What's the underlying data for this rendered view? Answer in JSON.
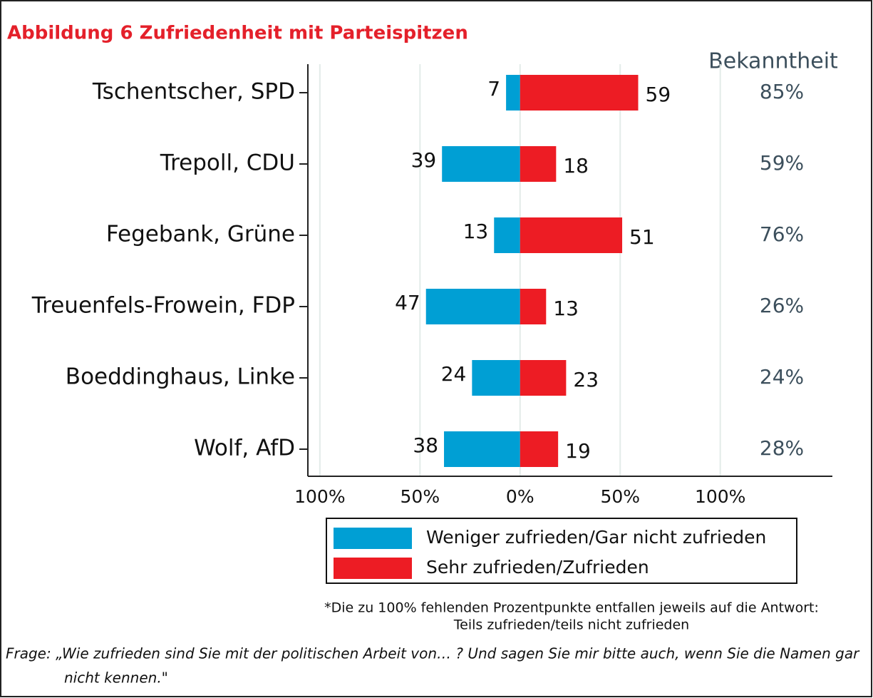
{
  "chart_data": {
    "type": "diverging_bar",
    "title": "Abbildung 6 Zufriedenheit mit Parteispitzen",
    "categories": [
      "Tschentscher, SPD",
      "Trepoll, CDU",
      "Fegebank, Grüne",
      "Treuenfels-Frowein, FDP",
      "Boeddinghaus, Linke",
      "Wolf, AfD"
    ],
    "series": [
      {
        "name": "Weniger zufrieden/Gar nicht zufrieden",
        "color": "#009fd4",
        "values": [
          -7,
          -39,
          -13,
          -47,
          -24,
          -38
        ],
        "value_labels": [
          "7",
          "39",
          "13",
          "47",
          "24",
          "38"
        ]
      },
      {
        "name": "Sehr zufrieden/Zufrieden",
        "color": "#ed1c24",
        "values": [
          59,
          18,
          51,
          13,
          23,
          19
        ]
      }
    ],
    "xlim": [
      -106,
      156
    ],
    "xticks": [
      {
        "value": -100,
        "label": "100%"
      },
      {
        "value": -50,
        "label": "50%"
      },
      {
        "value": 0,
        "label": "0%"
      },
      {
        "value": 50,
        "label": "50%"
      },
      {
        "value": 100,
        "label": "100%"
      }
    ],
    "grid": true,
    "bekanntheit": {
      "title": "Bekanntheit",
      "labels": [
        "85%",
        "59%",
        "76%",
        "26%",
        "24%",
        "28%"
      ]
    },
    "footnote": [
      "*Die zu 100% fehlenden Prozentpunkte entfallen jeweils auf die Antwort:",
      "Teils zufrieden/teils nicht zufrieden"
    ],
    "question": [
      "Frage: „Wie zufrieden sind Sie mit der politischen Arbeit von… ? Und sagen Sie mir bitte auch, wenn Sie die Namen gar",
      "nicht kennen.\""
    ]
  }
}
